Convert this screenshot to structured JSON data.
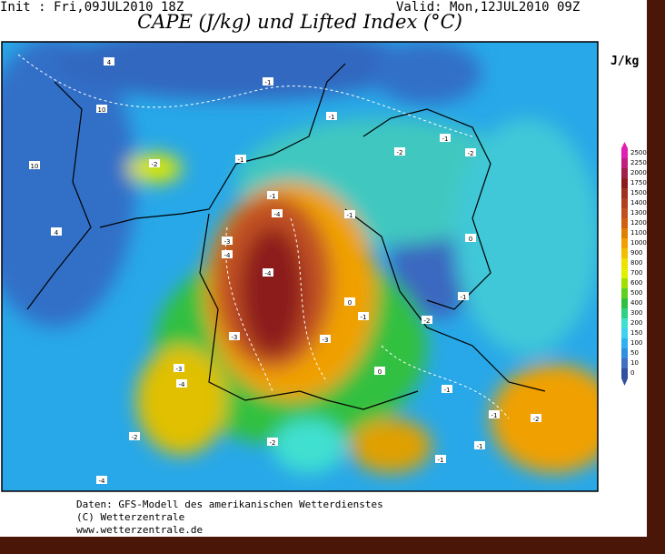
{
  "header": {
    "init": "Init : Fri,09JUL2010 18Z",
    "valid": "Valid: Mon,12JUL2010 09Z",
    "title": "CAPE (J/kg) und Lifted Index (°C)",
    "unit": "J/kg"
  },
  "legend": {
    "levels": [
      2500,
      2250,
      2000,
      1750,
      1500,
      1400,
      1300,
      1200,
      1100,
      1000,
      900,
      800,
      700,
      600,
      500,
      400,
      300,
      200,
      150,
      100,
      50,
      10,
      0
    ],
    "colors": [
      "#e020b0",
      "#c02080",
      "#a02048",
      "#8c1c1c",
      "#a03020",
      "#b04020",
      "#c05020",
      "#d06010",
      "#e08000",
      "#f0a000",
      "#f0c000",
      "#f0e000",
      "#e0f000",
      "#a0e000",
      "#60d020",
      "#30c040",
      "#30d080",
      "#40e0d0",
      "#40d0f0",
      "#30b0f0",
      "#3090e0",
      "#4070c0",
      "#3050a0"
    ]
  },
  "contour_labels": [
    "4",
    "10",
    "10",
    "4",
    "-1",
    "-1",
    "-2",
    "-1",
    "-1",
    "-2",
    "-1",
    "-2",
    "-4",
    "-1",
    "-3",
    "-4",
    "-4",
    "-3",
    "0",
    "-1",
    "-3",
    "-2",
    "-1",
    "0",
    "-4",
    "-3",
    "-2",
    "0",
    "-1",
    "-1",
    "-2",
    "-4",
    "-1",
    "-1",
    "-2"
  ],
  "footer": [
    "Daten: GFS-Modell des amerikanischen Wetterdienstes",
    "(C) Wetterzentrale",
    "www.wetterzentrale.de"
  ]
}
